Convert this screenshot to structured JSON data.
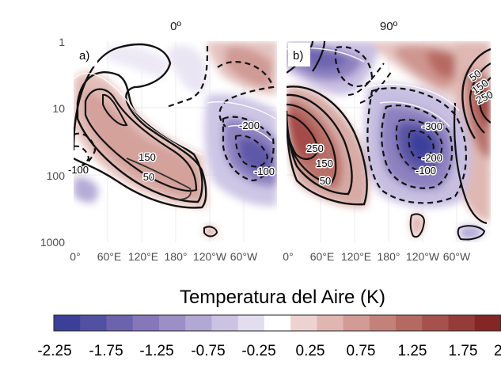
{
  "chart_data": {
    "type": "heatmap",
    "colorbar": {
      "title": "Temperatura del Aire (K)",
      "ticks": [
        "-2.25",
        "-1.75",
        "-1.25",
        "-0.75",
        "-0.25",
        "0.25",
        "0.75",
        "1.25",
        "1.75",
        "2"
      ],
      "colors": [
        "#3b3f9a",
        "#5250a4",
        "#6c63ae",
        "#8577b9",
        "#9c8fc6",
        "#b2a8d4",
        "#cbc3e2",
        "#e2ddef",
        "#ffffff",
        "#ecd3d1",
        "#e0b6b2",
        "#d29b95",
        "#c4817a",
        "#b56962",
        "#a6514d",
        "#953b39",
        "#842626"
      ]
    },
    "panels": [
      {
        "title": "0º",
        "label": "a)",
        "xticks": [
          "0°",
          "60°E",
          "120°E",
          "180°",
          "120°W",
          "60°W"
        ],
        "yticks": [
          "1",
          "10",
          "100",
          "1000"
        ],
        "yscale": "log",
        "contour_labels": [
          "150",
          "50",
          "-200",
          "-100",
          "-100"
        ]
      },
      {
        "title": "90º",
        "label": "b)",
        "xticks": [
          "0°",
          "60°E",
          "120°E",
          "180°",
          "120°W",
          "60°W"
        ],
        "contour_labels": [
          "250",
          "150",
          "50",
          "-300",
          "-200",
          "-100",
          "50",
          "150",
          "250"
        ]
      }
    ]
  }
}
